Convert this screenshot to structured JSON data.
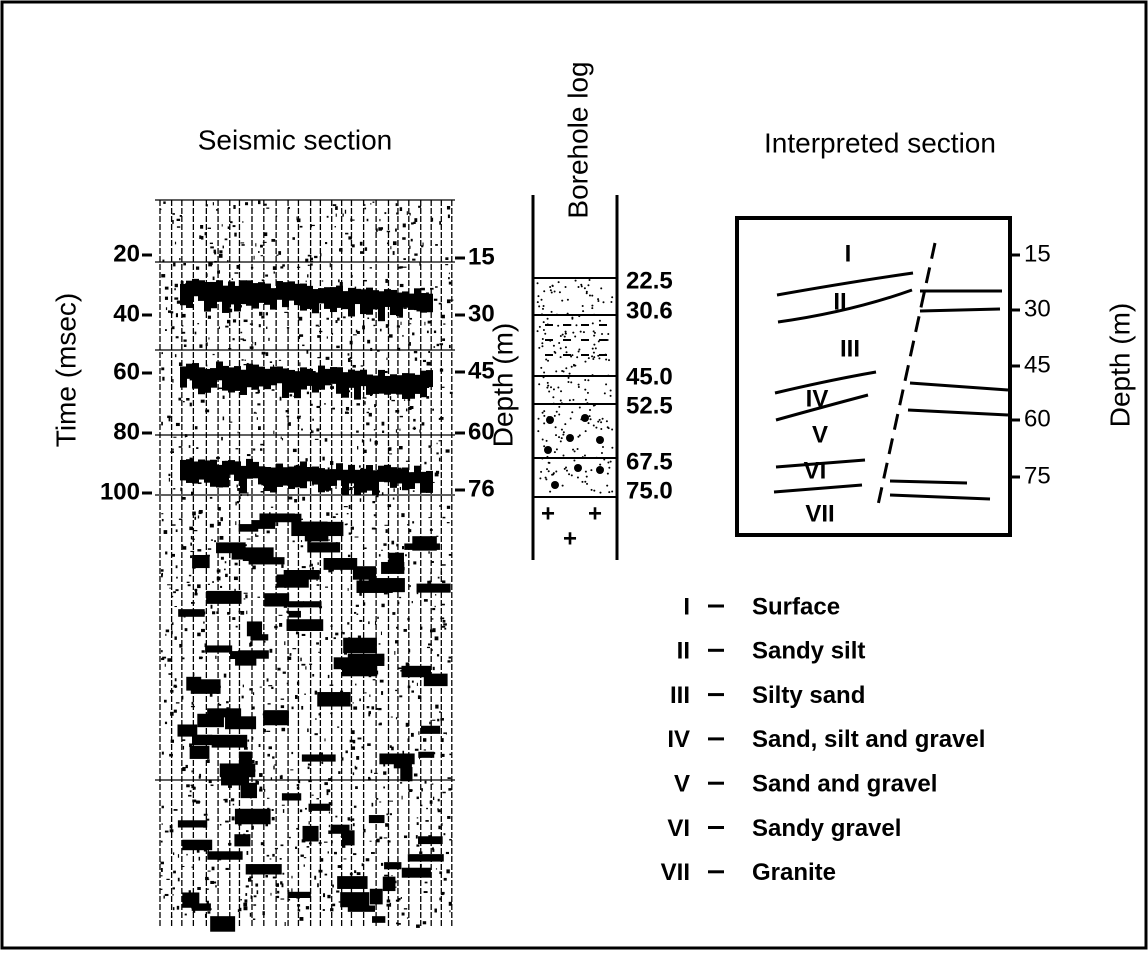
{
  "seismic_section": {
    "title": "Seismic section",
    "axis_label": "Time (msec)",
    "time_ticks": [
      "20",
      "40",
      "60",
      "80",
      "100"
    ],
    "depth_ticks": [
      "15",
      "30",
      "45",
      "60",
      "76"
    ]
  },
  "borehole_log": {
    "title": "Borehole log",
    "axis_label": "Depth (m)",
    "depths": [
      "22.5",
      "30.6",
      "45.0",
      "52.5",
      "67.5",
      "75.0"
    ]
  },
  "interpreted_section": {
    "title": "Interpreted section",
    "axis_label": "Depth (m)",
    "layer_labels": [
      "I",
      "II",
      "III",
      "IV",
      "V",
      "VI",
      "VII"
    ],
    "depth_ticks": [
      "15",
      "30",
      "45",
      "60",
      "75"
    ]
  },
  "legend": [
    {
      "numeral": "I",
      "name": "Surface"
    },
    {
      "numeral": "II",
      "name": "Sandy silt"
    },
    {
      "numeral": "III",
      "name": "Silty sand"
    },
    {
      "numeral": "IV",
      "name": "Sand, silt and gravel"
    },
    {
      "numeral": "V",
      "name": "Sand and gravel"
    },
    {
      "numeral": "VI",
      "name": "Sandy gravel"
    },
    {
      "numeral": "VII",
      "name": "Granite"
    }
  ]
}
